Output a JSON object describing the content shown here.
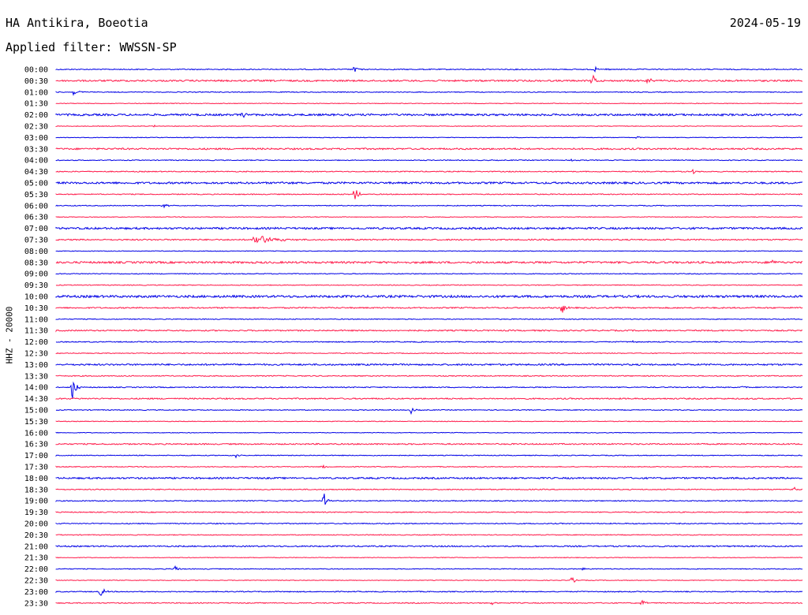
{
  "header": {
    "station": "HA Antikira, Boeotia",
    "date": "2024-05-19",
    "filter": "Applied filter: WWSSN-SP"
  },
  "colors": {
    "even": "#0000e6",
    "odd": "#ff1a4a"
  },
  "chart_data": {
    "type": "line",
    "ylabel": "HHZ - 20000",
    "rows": [
      "00:00",
      "00:30",
      "01:00",
      "01:30",
      "02:00",
      "02:30",
      "03:00",
      "03:30",
      "04:00",
      "04:30",
      "05:00",
      "05:30",
      "06:00",
      "06:30",
      "07:00",
      "07:30",
      "08:00",
      "08:30",
      "09:00",
      "09:30",
      "10:00",
      "10:30",
      "11:00",
      "11:30",
      "12:00",
      "12:30",
      "13:00",
      "13:30",
      "14:00",
      "14:30",
      "15:00",
      "15:30",
      "16:00",
      "16:30",
      "17:00",
      "17:30",
      "18:00",
      "18:30",
      "19:00",
      "19:30",
      "20:00",
      "20:30",
      "21:00",
      "21:30",
      "22:00",
      "22:30",
      "23:00",
      "23:30"
    ],
    "noise": [
      0.6,
      1.0,
      0.5,
      0.4,
      1.2,
      0.4,
      0.4,
      1.0,
      0.5,
      0.6,
      1.2,
      0.6,
      0.5,
      0.4,
      1.2,
      0.8,
      0.4,
      1.2,
      0.5,
      0.5,
      1.4,
      0.8,
      0.5,
      0.8,
      0.6,
      0.5,
      1.0,
      0.6,
      0.6,
      0.8,
      0.5,
      0.4,
      0.4,
      0.8,
      0.5,
      0.5,
      1.0,
      0.6,
      0.6,
      0.6,
      0.6,
      0.5,
      0.8,
      0.4,
      0.5,
      0.4,
      0.6,
      0.6
    ],
    "events": [
      {
        "row": 0,
        "min": 12.8,
        "amp": 5
      },
      {
        "row": 0,
        "min": 23.1,
        "amp": 3
      },
      {
        "row": 0,
        "min": 23.6,
        "amp": 2
      },
      {
        "row": 1,
        "min": 23.0,
        "amp": 9
      },
      {
        "row": 1,
        "min": 25.4,
        "amp": 6
      },
      {
        "row": 2,
        "min": 0.8,
        "amp": 8
      },
      {
        "row": 4,
        "min": 8.0,
        "amp": 5
      },
      {
        "row": 4,
        "min": 17.6,
        "amp": 2
      },
      {
        "row": 5,
        "min": 4.2,
        "amp": 2
      },
      {
        "row": 6,
        "min": 24.9,
        "amp": 3
      },
      {
        "row": 8,
        "min": 22.1,
        "amp": 2
      },
      {
        "row": 9,
        "min": 27.3,
        "amp": 4
      },
      {
        "row": 10,
        "min": 9.6,
        "amp": 3
      },
      {
        "row": 11,
        "min": 12.8,
        "amp": 12
      },
      {
        "row": 12,
        "min": 4.6,
        "amp": 4
      },
      {
        "row": 15,
        "min": 8.5,
        "amp": 8,
        "dur": 2.0
      },
      {
        "row": 17,
        "min": 30.7,
        "amp": 3
      },
      {
        "row": 21,
        "min": 21.7,
        "amp": 9
      },
      {
        "row": 24,
        "min": 24.7,
        "amp": 2
      },
      {
        "row": 28,
        "min": 0.7,
        "amp": 22
      },
      {
        "row": 28,
        "min": 29.4,
        "amp": 3
      },
      {
        "row": 30,
        "min": 15.2,
        "amp": 5
      },
      {
        "row": 34,
        "min": 7.7,
        "amp": 3
      },
      {
        "row": 35,
        "min": 11.4,
        "amp": 4
      },
      {
        "row": 37,
        "min": 31.6,
        "amp": 4
      },
      {
        "row": 38,
        "min": 11.5,
        "amp": 10
      },
      {
        "row": 44,
        "min": 5.1,
        "amp": 5
      },
      {
        "row": 44,
        "min": 22.6,
        "amp": 2
      },
      {
        "row": 45,
        "min": 22.1,
        "amp": 6
      },
      {
        "row": 46,
        "min": 1.9,
        "amp": 9
      },
      {
        "row": 47,
        "min": 25.1,
        "amp": 6
      },
      {
        "row": 47,
        "min": 18.7,
        "amp": 2
      }
    ]
  }
}
